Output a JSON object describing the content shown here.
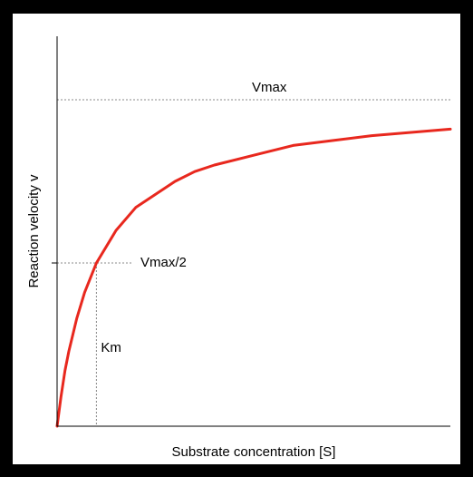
{
  "chart_data": {
    "type": "line",
    "title": "",
    "xlabel": "Substrate concentration [S]",
    "ylabel": "Reaction velocity v",
    "grid": false,
    "vmax": 1,
    "km": 0.1,
    "xlim": [
      0,
      1
    ],
    "ylim": [
      0,
      1
    ],
    "series": [
      {
        "color": "#e8281e",
        "x": [
          0,
          0.01,
          0.02,
          0.03,
          0.05,
          0.07,
          0.1,
          0.15,
          0.2,
          0.25,
          0.3,
          0.35,
          0.4,
          0.5,
          0.6,
          0.7,
          0.8,
          0.9,
          1.0
        ],
        "y": [
          0,
          0.09,
          0.17,
          0.23,
          0.33,
          0.41,
          0.5,
          0.6,
          0.67,
          0.71,
          0.75,
          0.78,
          0.8,
          0.83,
          0.86,
          0.875,
          0.89,
          0.9,
          0.91
        ]
      }
    ],
    "annotations": {
      "vmax": "Vmax",
      "vmax_half": "Vmax/2",
      "km": "Km"
    }
  },
  "colors": {
    "curve": "#e8281e",
    "axes": "#000000",
    "guides": "#888888",
    "background": "#000000",
    "plot_background": "#ffffff"
  }
}
